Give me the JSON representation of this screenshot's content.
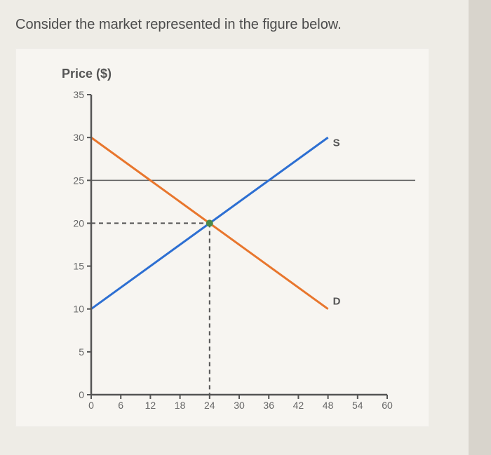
{
  "prompt_text": "Consider the market represented in the figure below.",
  "chart": {
    "type": "line",
    "y_axis_title": "Price ($)",
    "xlim": [
      0,
      60
    ],
    "ylim": [
      0,
      35
    ],
    "xticks": [
      0,
      6,
      12,
      18,
      24,
      30,
      36,
      42,
      48,
      54,
      60
    ],
    "yticks": [
      0,
      5,
      10,
      15,
      20,
      25,
      30,
      35
    ],
    "xtick_labels": [
      "0",
      "6",
      "12",
      "18",
      "24",
      "30",
      "36",
      "42",
      "48",
      "54",
      "60"
    ],
    "ytick_labels": [
      "0",
      "5",
      "10",
      "15",
      "20",
      "25",
      "30",
      "35"
    ],
    "background_color": "#f7f5f1",
    "axis_color": "#555555",
    "grid25_color": "#666666",
    "dashed_color": "#555555",
    "label_fontsize": 18,
    "tick_fontsize": 14,
    "series": [
      {
        "name": "S",
        "label": "S",
        "color": "#2d6fd2",
        "points": [
          [
            0,
            10
          ],
          [
            48,
            30
          ]
        ],
        "label_pos": [
          49,
          29
        ]
      },
      {
        "name": "D",
        "label": "D",
        "color": "#e8762d",
        "points": [
          [
            0,
            30
          ],
          [
            48,
            10
          ]
        ],
        "label_pos": [
          49,
          10.5
        ]
      }
    ],
    "reference_lines": {
      "horizontal_full_at_y": 25,
      "equilibrium": {
        "x": 24,
        "y": 20,
        "marker_color": "#4a8a4a"
      }
    }
  }
}
